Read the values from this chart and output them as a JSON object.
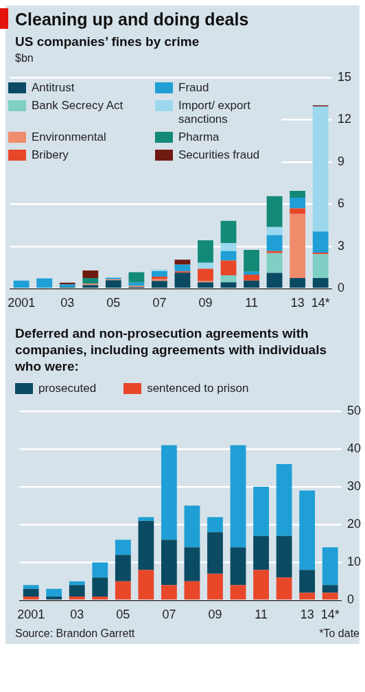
{
  "chart_data": [
    {
      "type": "bar",
      "title": "Cleaning up and doing deals",
      "subtitle": "US companies’ fines by crime",
      "ylabel": "$bn",
      "categories": [
        "2001",
        null,
        "03",
        null,
        "05",
        null,
        "07",
        null,
        "09",
        null,
        "11",
        null,
        "13",
        "14*"
      ],
      "stacked": true,
      "ylim": [
        0,
        15
      ],
      "yticks": [
        0,
        3,
        6,
        9,
        12,
        15
      ],
      "grid": "y",
      "legend": "top left",
      "series": [
        {
          "name": "Antitrust",
          "color": "#0b4a63",
          "values": [
            null,
            null,
            0.1,
            0.25,
            0.59,
            0.12,
            0.54,
            1.13,
            0.45,
            0.45,
            0.57,
            1.12,
            0.75,
            0.75
          ]
        },
        {
          "name": "Bank Secrecy Act",
          "color": "#7fcfc4",
          "values": [
            0,
            0,
            0,
            0,
            0,
            0,
            0,
            0,
            0,
            0.5,
            0,
            1.4,
            0,
            1.69
          ]
        },
        {
          "name": "Environmental",
          "color": "#ef8c6c",
          "values": [
            0,
            0,
            0,
            0.1,
            0.08,
            0.08,
            0.12,
            0,
            0.08,
            0,
            0,
            0,
            4.55,
            0
          ]
        },
        {
          "name": "Bribery",
          "color": "#e8472a",
          "values": [
            0,
            0,
            0,
            0,
            0,
            0,
            0.19,
            0.1,
            0.88,
            1.05,
            0.43,
            0.15,
            0.4,
            0.12
          ]
        },
        {
          "name": "Fraud",
          "color": "#1f9fd5",
          "values": [
            0.57,
            0.73,
            0.2,
            0,
            0.1,
            0.23,
            0.39,
            0.47,
            0,
            0.67,
            0.2,
            1.13,
            0.76,
            1.5
          ]
        },
        {
          "name": "Import/ export sanctions",
          "color": "#9bd8ee",
          "values": [
            0,
            0,
            0,
            0,
            null,
            0,
            0.12,
            0,
            0.42,
            0.57,
            0,
            0.57,
            0,
            8.88
          ]
        },
        {
          "name": "Pharma",
          "color": "#138a78",
          "values": [
            0,
            0,
            0,
            0.4,
            0,
            0.74,
            0,
            0,
            1.6,
            1.57,
            1.55,
            2.2,
            0.48,
            0
          ]
        },
        {
          "name": "Securities fraud",
          "color": "#6e1a10",
          "values": [
            0,
            0,
            0.12,
            0.54,
            0,
            0,
            0,
            0.36,
            0,
            0,
            0,
            0,
            0,
            0.08
          ]
        }
      ]
    },
    {
      "type": "bar",
      "title": "Deferred and non-prosecution agreements with companies, including agreements with individuals who were:",
      "categories": [
        "2001",
        null,
        "03",
        null,
        "05",
        null,
        "07",
        null,
        "09",
        null,
        "11",
        null,
        "13",
        "14*"
      ],
      "stacked": true,
      "ylim": [
        0,
        50
      ],
      "yticks": [
        0,
        10,
        20,
        30,
        40,
        50
      ],
      "grid": "y",
      "legend": "top",
      "annotations": [
        "Source: Brandon Garrett",
        "*To date"
      ],
      "series": [
        {
          "name": "sentenced to prison",
          "color": "#e8472a",
          "values": [
            1,
            0,
            1,
            1,
            5,
            8,
            4,
            5,
            7,
            4,
            8,
            6,
            2,
            2
          ]
        },
        {
          "name": "prosecuted",
          "color": "#0b4a63",
          "values": [
            2,
            1,
            3,
            5,
            7,
            13,
            12,
            9,
            11,
            10,
            9,
            11,
            6,
            2
          ]
        },
        {
          "color": "#1f9fd5",
          "values": [
            1,
            2,
            1,
            4,
            4,
            1,
            25,
            11,
            4,
            27,
            13,
            19,
            21,
            10
          ]
        }
      ]
    }
  ]
}
